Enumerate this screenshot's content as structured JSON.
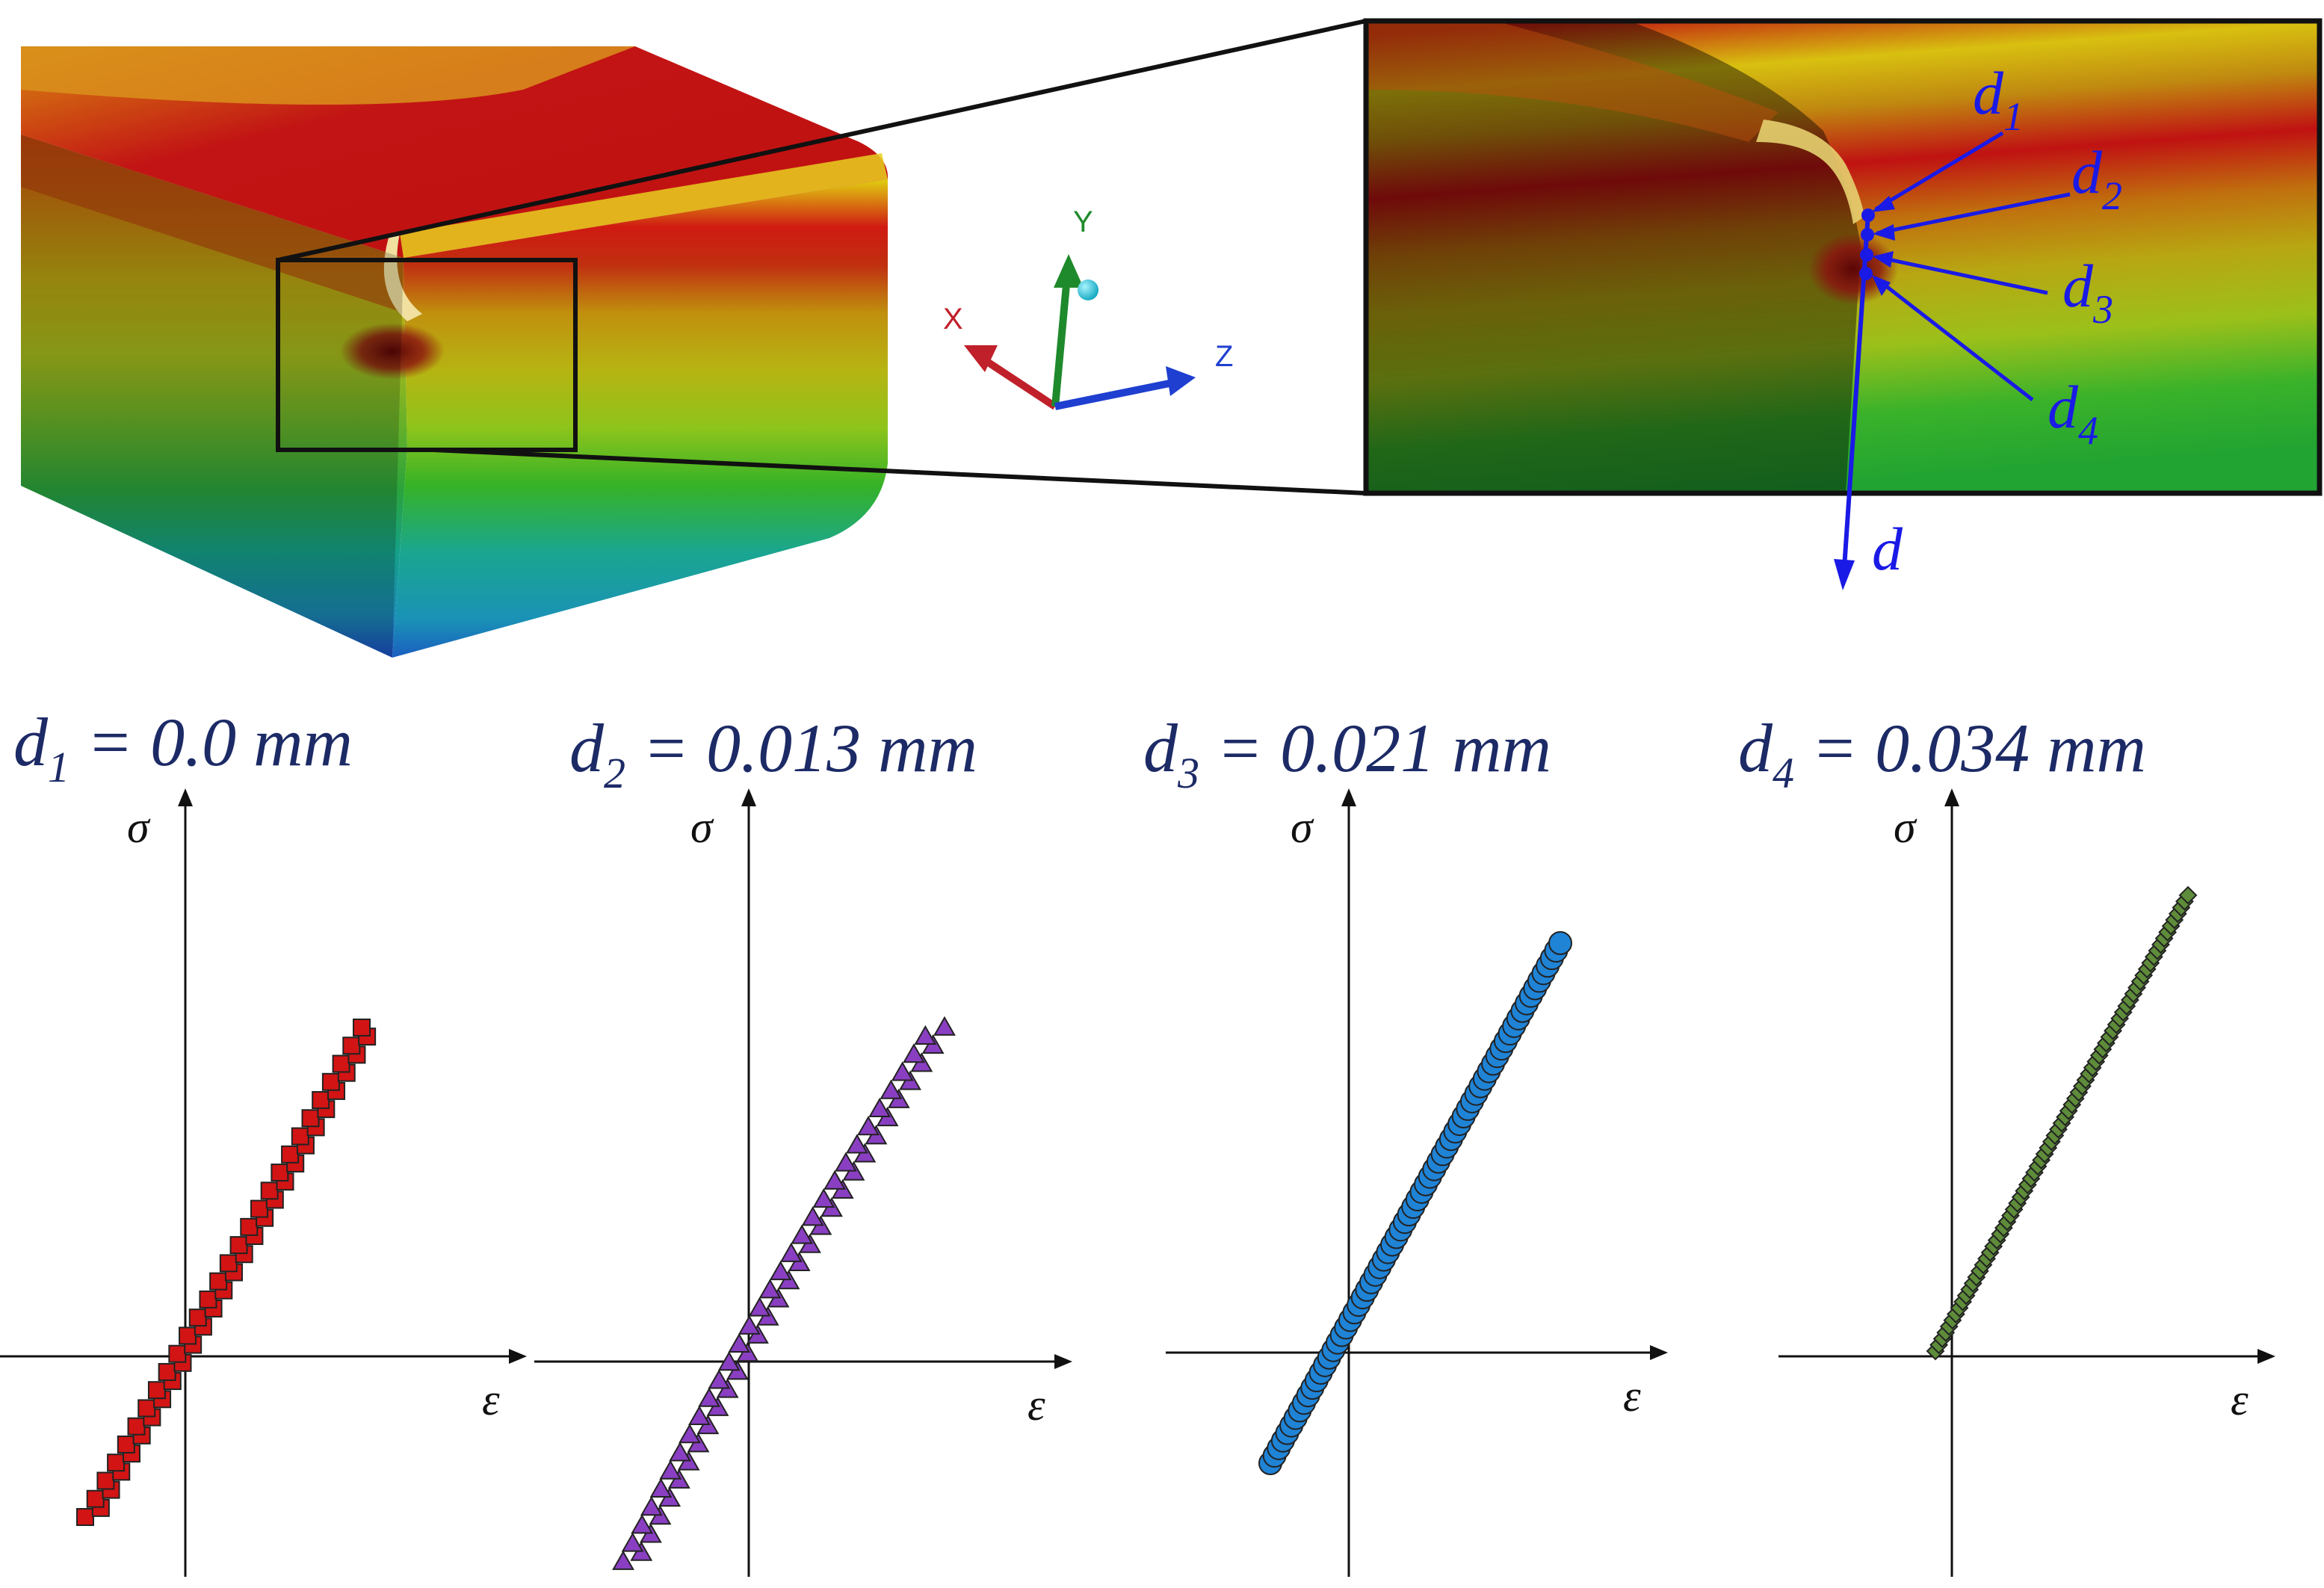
{
  "triad": {
    "x_label": "X",
    "y_label": "Y",
    "z_label": "Z",
    "colors": {
      "x": "#c0202a",
      "y": "#1f8a2c",
      "z": "#1f3fd0",
      "origin": "#19c6d6"
    }
  },
  "zoom_labels": {
    "d1": {
      "base": "d",
      "sub": "1"
    },
    "d2": {
      "base": "d",
      "sub": "2"
    },
    "d3": {
      "base": "d",
      "sub": "3"
    },
    "d4": {
      "base": "d",
      "sub": "4"
    },
    "d": {
      "base": "d"
    }
  },
  "plots": [
    {
      "id": "d1",
      "head_base": "d",
      "head_sub": "1",
      "head_rest": " = 0.0 mm",
      "marker": "square",
      "color": "#d21414",
      "y_label": "σ",
      "x_label": "ε"
    },
    {
      "id": "d2",
      "head_base": "d",
      "head_sub": "2",
      "head_rest": " = 0.013 mm",
      "marker": "triangle",
      "color": "#8a3fc2",
      "y_label": "σ",
      "x_label": "ε"
    },
    {
      "id": "d3",
      "head_base": "d",
      "head_sub": "3",
      "head_rest": " = 0.021 mm",
      "marker": "circle",
      "color": "#1f83d6",
      "y_label": "σ",
      "x_label": "ε"
    },
    {
      "id": "d4",
      "head_base": "d",
      "head_sub": "4",
      "head_rest": " = 0.034 mm",
      "marker": "diamond",
      "color": "#5e8c3a",
      "y_label": "σ",
      "x_label": "ε"
    }
  ]
}
